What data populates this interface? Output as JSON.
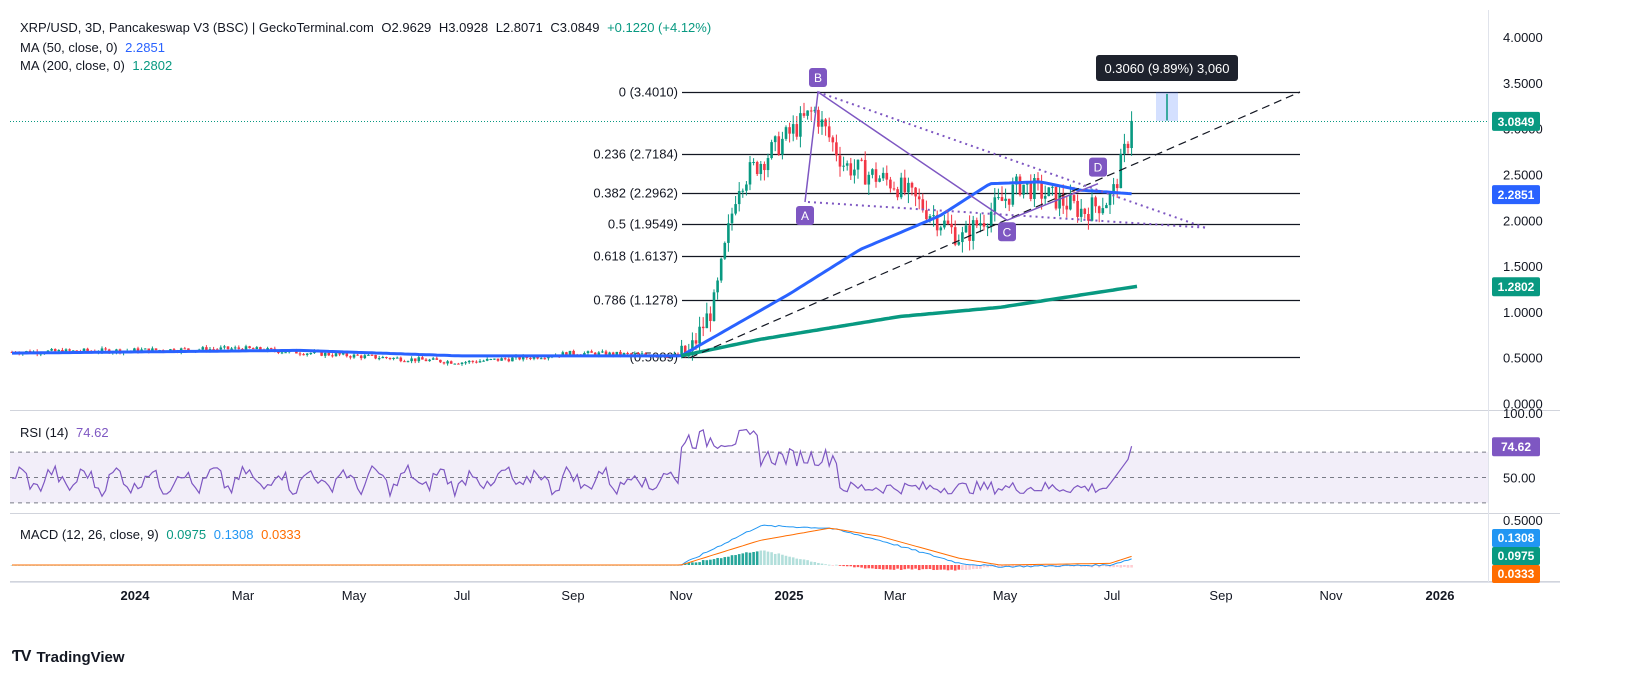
{
  "header": {
    "symbol": "XRP/USD, 3D, Pancakeswap V3 (BSC) | GeckoTerminal.com",
    "open": "O2.9629",
    "high": "H3.0928",
    "low": "L2.8071",
    "close": "C3.0849",
    "change": "+0.1220 (+4.12%)",
    "ma50_label": "MA (50, close, 0)",
    "ma50_value": "2.2851",
    "ma200_label": "MA (200, close, 0)",
    "ma200_value": "1.2802"
  },
  "price_axis": {
    "ticks": [
      "4.0000",
      "3.5000",
      "3.0000",
      "2.5000",
      "2.0000",
      "1.5000",
      "1.0000",
      "0.5000",
      "0.0000"
    ],
    "current_label": "3.0849",
    "ma50_label": "2.2851",
    "ma200_label": "1.2802"
  },
  "fib_levels": [
    {
      "label": "0 (3.4010)",
      "value": 3.401
    },
    {
      "label": "0.236 (2.7184)",
      "value": 2.7184
    },
    {
      "label": "0.382 (2.2962)",
      "value": 2.2962
    },
    {
      "label": "0.5 (1.9549)",
      "value": 1.9549
    },
    {
      "label": "0.618 (1.6137)",
      "value": 1.6137
    },
    {
      "label": "0.786 (1.1278)",
      "value": 1.1278
    },
    {
      "label": "(0.5089)",
      "value": 0.5089
    }
  ],
  "pattern_points": [
    "A",
    "B",
    "C",
    "D"
  ],
  "measure_label": "0.3060 (9.89%) 3,060",
  "rsi": {
    "title": "RSI (14)",
    "value": "74.62",
    "axis_ticks": [
      "100.00",
      "50.00"
    ]
  },
  "macd": {
    "title": "MACD (12, 26, close, 9)",
    "macd_value": "0.0975",
    "signal_value": "0.1308",
    "hist_value": "0.0333",
    "axis_ticks": [
      "0.5000"
    ]
  },
  "time_axis": {
    "labels": [
      "2024",
      "Mar",
      "May",
      "Jul",
      "Sep",
      "Nov",
      "2025",
      "Mar",
      "May",
      "Jul",
      "Sep",
      "Nov",
      "2026"
    ]
  },
  "brand": {
    "name": "TradingView"
  },
  "colors": {
    "up": "#089981",
    "down": "#f23645",
    "ma50": "#2962ff",
    "ma200": "#089981",
    "rsi": "#7e57c2",
    "macd": "#2196f3",
    "signal": "#ff6d00",
    "pattern": "#7e57c2"
  },
  "chart_data": {
    "type": "candlestick",
    "title": "XRP/USD, 3D, Pancakeswap V3 (BSC) | GeckoTerminal.com",
    "ylim": [
      0,
      4
    ],
    "x_range": [
      "2023-11-01",
      "2026-01-31"
    ],
    "close_series_approx": [
      {
        "date": "2023-11-01",
        "close": 0.56
      },
      {
        "date": "2024-01-01",
        "close": 0.58
      },
      {
        "date": "2024-03-01",
        "close": 0.6
      },
      {
        "date": "2024-05-01",
        "close": 0.52
      },
      {
        "date": "2024-07-01",
        "close": 0.45
      },
      {
        "date": "2024-08-05",
        "close": 0.5
      },
      {
        "date": "2024-09-01",
        "close": 0.55
      },
      {
        "date": "2024-11-05",
        "close": 0.52
      },
      {
        "date": "2024-11-20",
        "close": 1.1
      },
      {
        "date": "2024-12-03",
        "close": 2.4
      },
      {
        "date": "2025-01-15",
        "close": 3.2
      },
      {
        "date": "2025-02-01",
        "close": 2.6
      },
      {
        "date": "2025-03-01",
        "close": 2.4
      },
      {
        "date": "2025-04-07",
        "close": 1.8
      },
      {
        "date": "2025-05-10",
        "close": 2.4
      },
      {
        "date": "2025-06-15",
        "close": 2.1
      },
      {
        "date": "2025-07-01",
        "close": 2.25
      },
      {
        "date": "2025-07-13",
        "close": 3.0849
      }
    ],
    "ma50_last": 2.2851,
    "ma200_last": 1.2802,
    "rsi_last": 74.62,
    "macd_last": {
      "macd": 0.0975,
      "signal": 0.1308,
      "histogram": 0.0333
    }
  }
}
